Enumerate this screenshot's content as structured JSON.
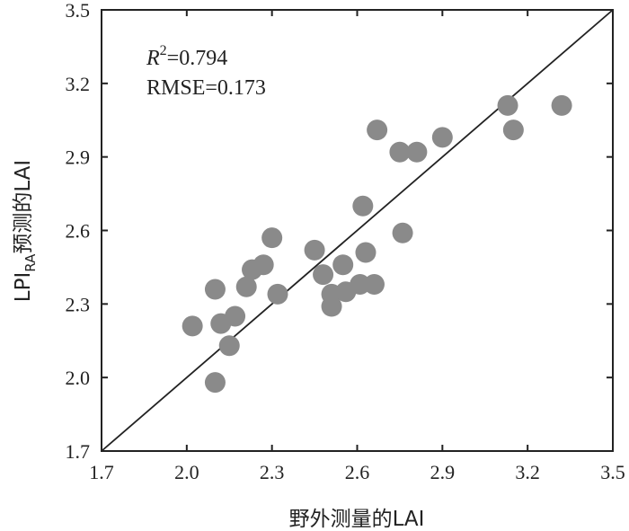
{
  "chart_data": {
    "type": "scatter",
    "xlabel": "野外测量的LAI",
    "ylabel": {
      "prefix": "LPI",
      "sub": "RA",
      "suffix": "预测的LAI"
    },
    "xlim": [
      1.7,
      3.5
    ],
    "ylim": [
      1.7,
      3.5
    ],
    "xticks": [
      "1.7",
      "2.0",
      "2.3",
      "2.6",
      "2.9",
      "3.2",
      "3.5"
    ],
    "yticks": [
      "1.7",
      "2.0",
      "2.3",
      "2.6",
      "2.9",
      "3.2",
      "3.5"
    ],
    "reference_line": {
      "type": "1:1",
      "from": [
        1.7,
        1.7
      ],
      "to": [
        3.5,
        3.5
      ]
    },
    "annotations": {
      "r2_symbol": "R",
      "r2_sup": "2",
      "r2_value": "=0.794",
      "rmse": "RMSE=0.173"
    },
    "grid": false,
    "marker_color": "#8a8a8a",
    "points": [
      {
        "x": 2.02,
        "y": 2.21
      },
      {
        "x": 2.1,
        "y": 2.36
      },
      {
        "x": 2.1,
        "y": 1.98
      },
      {
        "x": 2.12,
        "y": 2.22
      },
      {
        "x": 2.15,
        "y": 2.13
      },
      {
        "x": 2.17,
        "y": 2.25
      },
      {
        "x": 2.21,
        "y": 2.37
      },
      {
        "x": 2.23,
        "y": 2.44
      },
      {
        "x": 2.27,
        "y": 2.46
      },
      {
        "x": 2.3,
        "y": 2.57
      },
      {
        "x": 2.32,
        "y": 2.34
      },
      {
        "x": 2.45,
        "y": 2.52
      },
      {
        "x": 2.48,
        "y": 2.42
      },
      {
        "x": 2.51,
        "y": 2.29
      },
      {
        "x": 2.51,
        "y": 2.34
      },
      {
        "x": 2.55,
        "y": 2.46
      },
      {
        "x": 2.56,
        "y": 2.35
      },
      {
        "x": 2.61,
        "y": 2.38
      },
      {
        "x": 2.62,
        "y": 2.7
      },
      {
        "x": 2.63,
        "y": 2.51
      },
      {
        "x": 2.66,
        "y": 2.38
      },
      {
        "x": 2.67,
        "y": 3.01
      },
      {
        "x": 2.75,
        "y": 2.92
      },
      {
        "x": 2.76,
        "y": 2.59
      },
      {
        "x": 2.81,
        "y": 2.92
      },
      {
        "x": 2.9,
        "y": 2.98
      },
      {
        "x": 3.13,
        "y": 3.11
      },
      {
        "x": 3.15,
        "y": 3.01
      },
      {
        "x": 3.32,
        "y": 3.11
      }
    ]
  }
}
